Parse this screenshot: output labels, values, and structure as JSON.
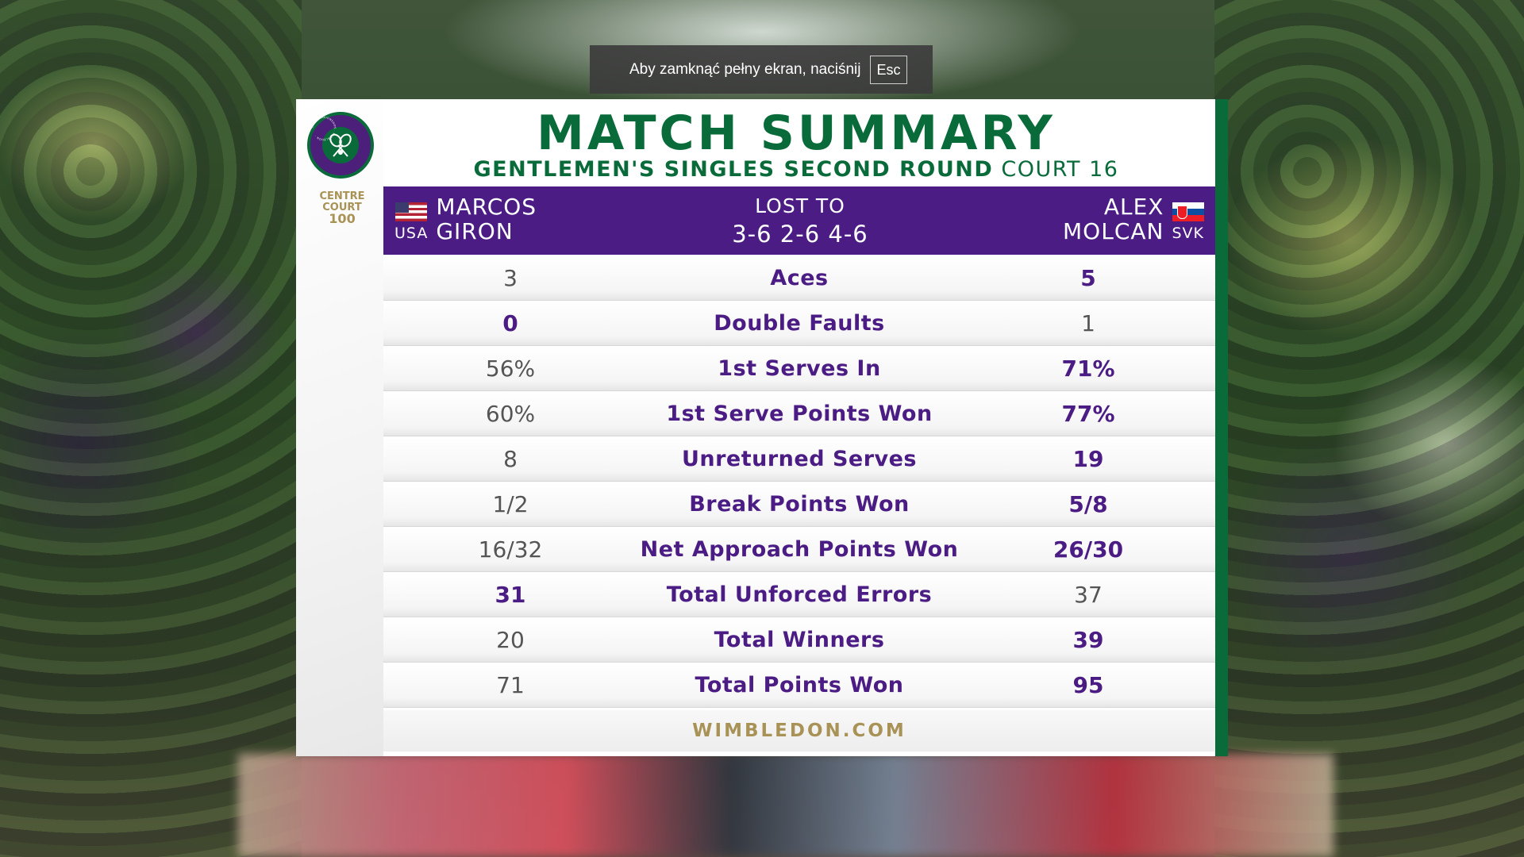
{
  "toast": {
    "message": "Aby zamknąć pełny ekran, naciśnij",
    "key": "Esc"
  },
  "branding": {
    "logo_ring_text": "THE CHAMPIONSHIPS · WIMBLEDON ·",
    "centre_court_line1": "CENTRE",
    "centre_court_line2": "COURT",
    "centre_court_num": "100"
  },
  "header": {
    "title": "MATCH SUMMARY",
    "round": "GENTLEMEN'S SINGLES SECOND ROUND",
    "court": "COURT 16"
  },
  "players": {
    "left": {
      "first": "MARCOS",
      "last": "GIRON",
      "country": "USA"
    },
    "right": {
      "first": "ALEX",
      "last": "MOLCAN",
      "country": "SVK"
    }
  },
  "result": {
    "label": "LOST TO",
    "score": "3-6 2-6 4-6"
  },
  "stats": [
    {
      "label": "Aces",
      "left": "3",
      "right": "5",
      "bold": "right"
    },
    {
      "label": "Double Faults",
      "left": "0",
      "right": "1",
      "bold": "left"
    },
    {
      "label": "1st Serves In",
      "left": "56%",
      "right": "71%",
      "bold": "right"
    },
    {
      "label": "1st Serve Points Won",
      "left": "60%",
      "right": "77%",
      "bold": "right"
    },
    {
      "label": "Unreturned Serves",
      "left": "8",
      "right": "19",
      "bold": "right"
    },
    {
      "label": "Break Points Won",
      "left": "1/2",
      "right": "5/8",
      "bold": "right"
    },
    {
      "label": "Net Approach Points Won",
      "left": "16/32",
      "right": "26/30",
      "bold": "right"
    },
    {
      "label": "Total Unforced Errors",
      "left": "31",
      "right": "37",
      "bold": "left"
    },
    {
      "label": "Total Winners",
      "left": "20",
      "right": "39",
      "bold": "right"
    },
    {
      "label": "Total Points Won",
      "left": "71",
      "right": "95",
      "bold": "right"
    }
  ],
  "footer": {
    "site": "WIMBLEDON.COM"
  },
  "colors": {
    "purple": "#4b1c84",
    "green": "#0a6b3a",
    "gold": "#a89255"
  }
}
